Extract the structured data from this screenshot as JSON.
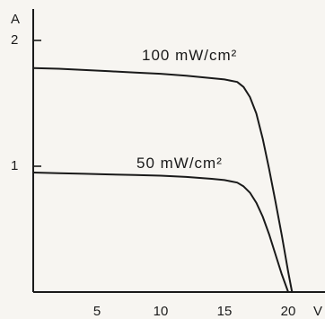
{
  "chart_data": {
    "type": "line",
    "xaxis": {
      "unit": "V",
      "range": [
        0,
        21.5
      ],
      "ticks": [
        5,
        10,
        15,
        20
      ],
      "tick_labels": [
        "5",
        "10",
        "15",
        "20"
      ]
    },
    "yaxis": {
      "unit": "A",
      "range": [
        0,
        2.1
      ],
      "ticks": [
        1,
        2
      ],
      "tick_labels": [
        "1",
        "2"
      ]
    },
    "grid": false,
    "series": [
      {
        "name": "100 mW/cm²",
        "label_text": "100 mW/cm²",
        "x": [
          0,
          2,
          4,
          6,
          8,
          10,
          12,
          14,
          15,
          16,
          16.5,
          17,
          17.5,
          18,
          18.5,
          19,
          19.5,
          20,
          20.3
        ],
        "y": [
          1.78,
          1.775,
          1.765,
          1.755,
          1.745,
          1.735,
          1.72,
          1.7,
          1.69,
          1.67,
          1.63,
          1.55,
          1.42,
          1.22,
          0.98,
          0.72,
          0.45,
          0.16,
          0
        ]
      },
      {
        "name": "50 mW/cm²",
        "label_text": "50 mW/cm²",
        "x": [
          0,
          2,
          4,
          6,
          8,
          10,
          12,
          14,
          15,
          16,
          16.5,
          17,
          17.5,
          18,
          18.5,
          19,
          19.5,
          20
        ],
        "y": [
          0.95,
          0.945,
          0.94,
          0.935,
          0.93,
          0.925,
          0.915,
          0.9,
          0.89,
          0.87,
          0.84,
          0.79,
          0.71,
          0.6,
          0.46,
          0.3,
          0.14,
          0
        ]
      }
    ]
  }
}
